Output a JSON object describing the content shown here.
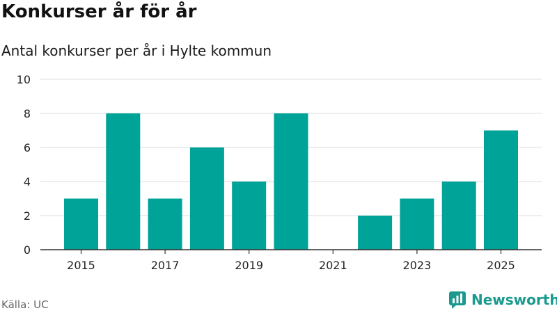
{
  "header": {
    "title": "Konkurser år för år",
    "subtitle": "Antal konkurser per år i Hylte kommun"
  },
  "footer": {
    "source": "Källa: UC",
    "brand": "Newsworthy",
    "brand_icon": "newsworthy-logo-icon"
  },
  "colors": {
    "bar": "#00A398",
    "grid": "#dcdcdc",
    "axis": "#333333",
    "brand": "#1a9a8e"
  },
  "chart_data": {
    "type": "bar",
    "title": "Konkurser år för år",
    "subtitle": "Antal konkurser per år i Hylte kommun",
    "categories": [
      "2015",
      "2016",
      "2017",
      "2018",
      "2019",
      "2020",
      "2021",
      "2022",
      "2023",
      "2024",
      "2025"
    ],
    "values": [
      3,
      8,
      3,
      6,
      4,
      8,
      0,
      2,
      3,
      4,
      7
    ],
    "x_tick_labels": [
      "2015",
      "2017",
      "2019",
      "2021",
      "2023",
      "2025"
    ],
    "y_ticks": [
      0,
      2,
      4,
      6,
      8,
      10
    ],
    "ylim": [
      0,
      10
    ],
    "xlabel": "",
    "ylabel": "",
    "grid": true,
    "legend": "none"
  }
}
